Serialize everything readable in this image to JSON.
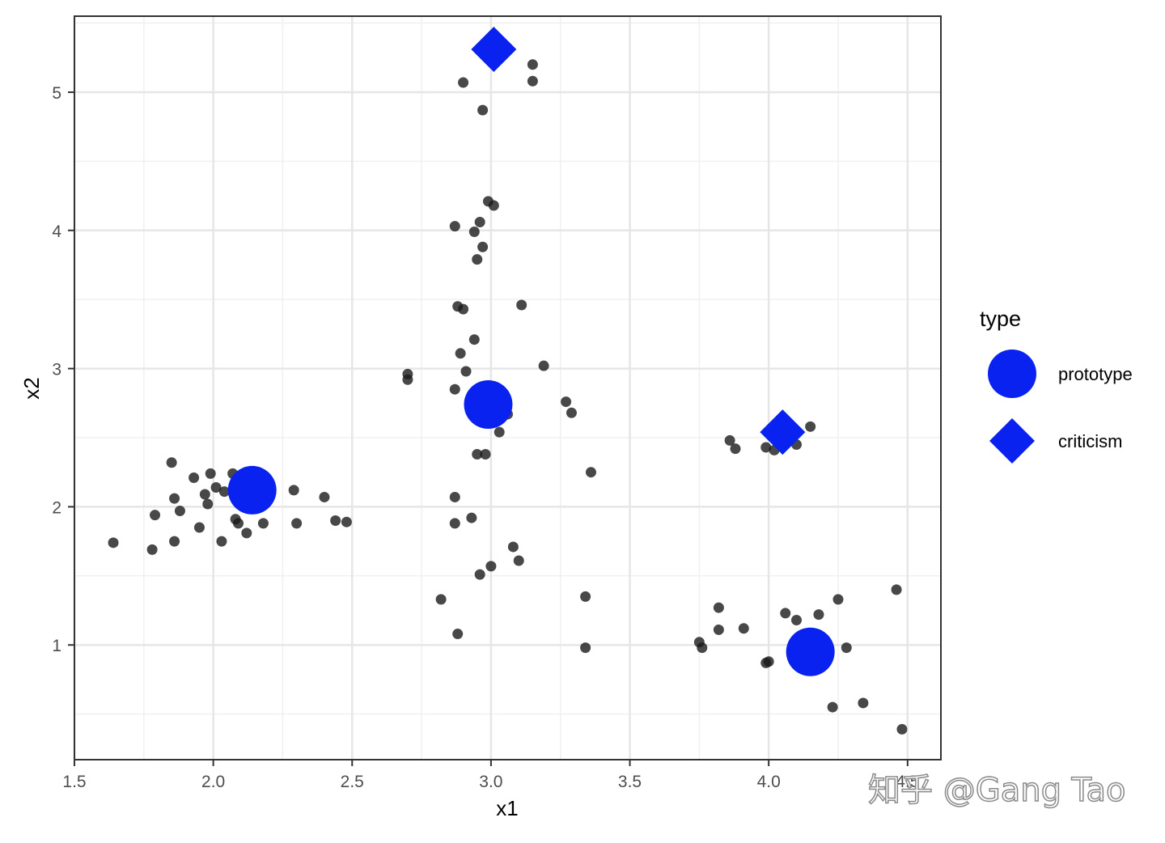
{
  "chart_data": {
    "type": "scatter",
    "xlabel": "x1",
    "ylabel": "x2",
    "xlim": [
      1.5,
      4.62
    ],
    "ylim": [
      0.17,
      5.55
    ],
    "xticks": [
      1.5,
      2.0,
      2.5,
      3.0,
      3.5,
      4.0,
      4.5
    ],
    "xtick_labels": [
      "1.5",
      "2.0",
      "2.5",
      "3.0",
      "3.5",
      "4.0",
      "4.5"
    ],
    "yticks": [
      1,
      2,
      3,
      4,
      5
    ],
    "ytick_labels": [
      "1",
      "2",
      "3",
      "4",
      "5"
    ],
    "grid": true,
    "legend": {
      "title": "type",
      "placement": "right",
      "entries": [
        {
          "label": "prototype",
          "shape": "circle",
          "color": "#0a22f0"
        },
        {
          "label": "criticism",
          "shape": "diamond",
          "color": "#0a22f0"
        }
      ]
    },
    "series": [
      {
        "color": "#1a1a1a",
        "points": [
          {
            "x": 1.64,
            "y": 1.74
          },
          {
            "x": 1.78,
            "y": 1.69
          },
          {
            "x": 1.79,
            "y": 1.94
          },
          {
            "x": 1.85,
            "y": 2.32
          },
          {
            "x": 1.86,
            "y": 2.06
          },
          {
            "x": 1.86,
            "y": 1.75
          },
          {
            "x": 1.88,
            "y": 1.97
          },
          {
            "x": 1.93,
            "y": 2.21
          },
          {
            "x": 1.95,
            "y": 1.85
          },
          {
            "x": 1.97,
            "y": 2.09
          },
          {
            "x": 1.98,
            "y": 2.02
          },
          {
            "x": 1.99,
            "y": 2.24
          },
          {
            "x": 2.01,
            "y": 2.14
          },
          {
            "x": 2.03,
            "y": 1.75
          },
          {
            "x": 2.04,
            "y": 2.11
          },
          {
            "x": 2.07,
            "y": 2.24
          },
          {
            "x": 2.08,
            "y": 1.91
          },
          {
            "x": 2.09,
            "y": 1.88
          },
          {
            "x": 2.12,
            "y": 1.81
          },
          {
            "x": 2.18,
            "y": 1.88
          },
          {
            "x": 2.29,
            "y": 2.12
          },
          {
            "x": 2.3,
            "y": 1.88
          },
          {
            "x": 2.4,
            "y": 2.07
          },
          {
            "x": 2.44,
            "y": 1.9
          },
          {
            "x": 2.48,
            "y": 1.89
          },
          {
            "x": 2.7,
            "y": 2.96
          },
          {
            "x": 2.7,
            "y": 2.92
          },
          {
            "x": 2.82,
            "y": 1.33
          },
          {
            "x": 2.87,
            "y": 4.03
          },
          {
            "x": 2.87,
            "y": 2.85
          },
          {
            "x": 2.87,
            "y": 2.07
          },
          {
            "x": 2.87,
            "y": 1.88
          },
          {
            "x": 2.88,
            "y": 3.45
          },
          {
            "x": 2.88,
            "y": 1.08
          },
          {
            "x": 2.89,
            "y": 3.11
          },
          {
            "x": 2.9,
            "y": 5.07
          },
          {
            "x": 2.9,
            "y": 3.43
          },
          {
            "x": 2.91,
            "y": 2.98
          },
          {
            "x": 2.93,
            "y": 1.92
          },
          {
            "x": 2.94,
            "y": 3.99
          },
          {
            "x": 2.94,
            "y": 3.21
          },
          {
            "x": 2.95,
            "y": 3.79
          },
          {
            "x": 2.95,
            "y": 2.38
          },
          {
            "x": 2.96,
            "y": 4.06
          },
          {
            "x": 2.96,
            "y": 1.51
          },
          {
            "x": 2.97,
            "y": 4.87
          },
          {
            "x": 2.97,
            "y": 3.88
          },
          {
            "x": 2.98,
            "y": 2.38
          },
          {
            "x": 2.99,
            "y": 4.21
          },
          {
            "x": 3.0,
            "y": 1.57
          },
          {
            "x": 3.01,
            "y": 4.18
          },
          {
            "x": 3.03,
            "y": 2.54
          },
          {
            "x": 3.06,
            "y": 2.67
          },
          {
            "x": 3.08,
            "y": 1.71
          },
          {
            "x": 3.1,
            "y": 1.61
          },
          {
            "x": 3.11,
            "y": 3.46
          },
          {
            "x": 3.15,
            "y": 5.2
          },
          {
            "x": 3.15,
            "y": 5.08
          },
          {
            "x": 3.19,
            "y": 3.02
          },
          {
            "x": 3.27,
            "y": 2.76
          },
          {
            "x": 3.29,
            "y": 2.68
          },
          {
            "x": 3.34,
            "y": 1.35
          },
          {
            "x": 3.34,
            "y": 0.98
          },
          {
            "x": 3.36,
            "y": 2.25
          },
          {
            "x": 3.75,
            "y": 1.02
          },
          {
            "x": 3.76,
            "y": 0.98
          },
          {
            "x": 3.82,
            "y": 1.27
          },
          {
            "x": 3.82,
            "y": 1.11
          },
          {
            "x": 3.86,
            "y": 2.48
          },
          {
            "x": 3.88,
            "y": 2.42
          },
          {
            "x": 3.91,
            "y": 1.12
          },
          {
            "x": 3.99,
            "y": 2.43
          },
          {
            "x": 3.99,
            "y": 0.87
          },
          {
            "x": 4.0,
            "y": 0.88
          },
          {
            "x": 4.02,
            "y": 2.41
          },
          {
            "x": 4.06,
            "y": 1.23
          },
          {
            "x": 4.1,
            "y": 2.45
          },
          {
            "x": 4.1,
            "y": 1.18
          },
          {
            "x": 4.15,
            "y": 2.58
          },
          {
            "x": 4.18,
            "y": 1.22
          },
          {
            "x": 4.23,
            "y": 0.55
          },
          {
            "x": 4.25,
            "y": 1.33
          },
          {
            "x": 4.28,
            "y": 0.98
          },
          {
            "x": 4.34,
            "y": 0.58
          },
          {
            "x": 4.46,
            "y": 1.4
          },
          {
            "x": 4.48,
            "y": 0.39
          }
        ]
      },
      {
        "name": "prototype",
        "color": "#0a22f0",
        "shape": "circle",
        "points": [
          {
            "x": 2.14,
            "y": 2.12
          },
          {
            "x": 2.99,
            "y": 2.74
          },
          {
            "x": 4.15,
            "y": 0.95
          }
        ]
      },
      {
        "name": "criticism",
        "color": "#0a22f0",
        "shape": "diamond",
        "points": [
          {
            "x": 3.01,
            "y": 5.31
          },
          {
            "x": 4.05,
            "y": 2.54
          }
        ]
      }
    ]
  },
  "watermark": "知乎 @Gang Tao"
}
